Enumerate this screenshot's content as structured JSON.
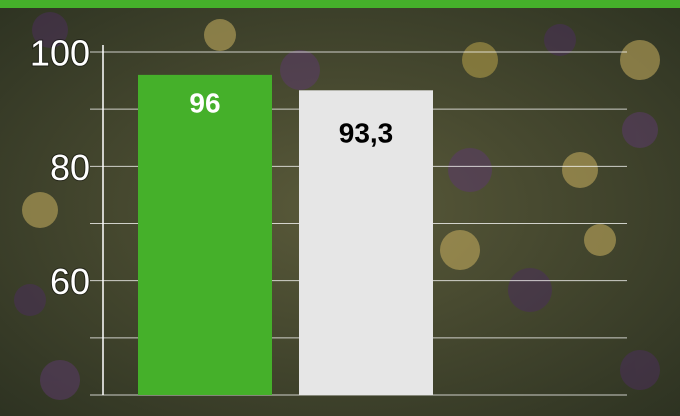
{
  "chart_data": {
    "type": "bar",
    "values": [
      96,
      93.3
    ],
    "value_labels": [
      "96",
      "93,3"
    ],
    "colors": [
      "#45b02a",
      "#e6e6e6"
    ],
    "label_colors": [
      "#ffffff",
      "#000000"
    ],
    "ylim": [
      40,
      100
    ],
    "yticks": [
      60,
      80,
      100
    ],
    "minor_yticks": [
      40,
      50,
      70,
      90
    ],
    "grid": true
  }
}
